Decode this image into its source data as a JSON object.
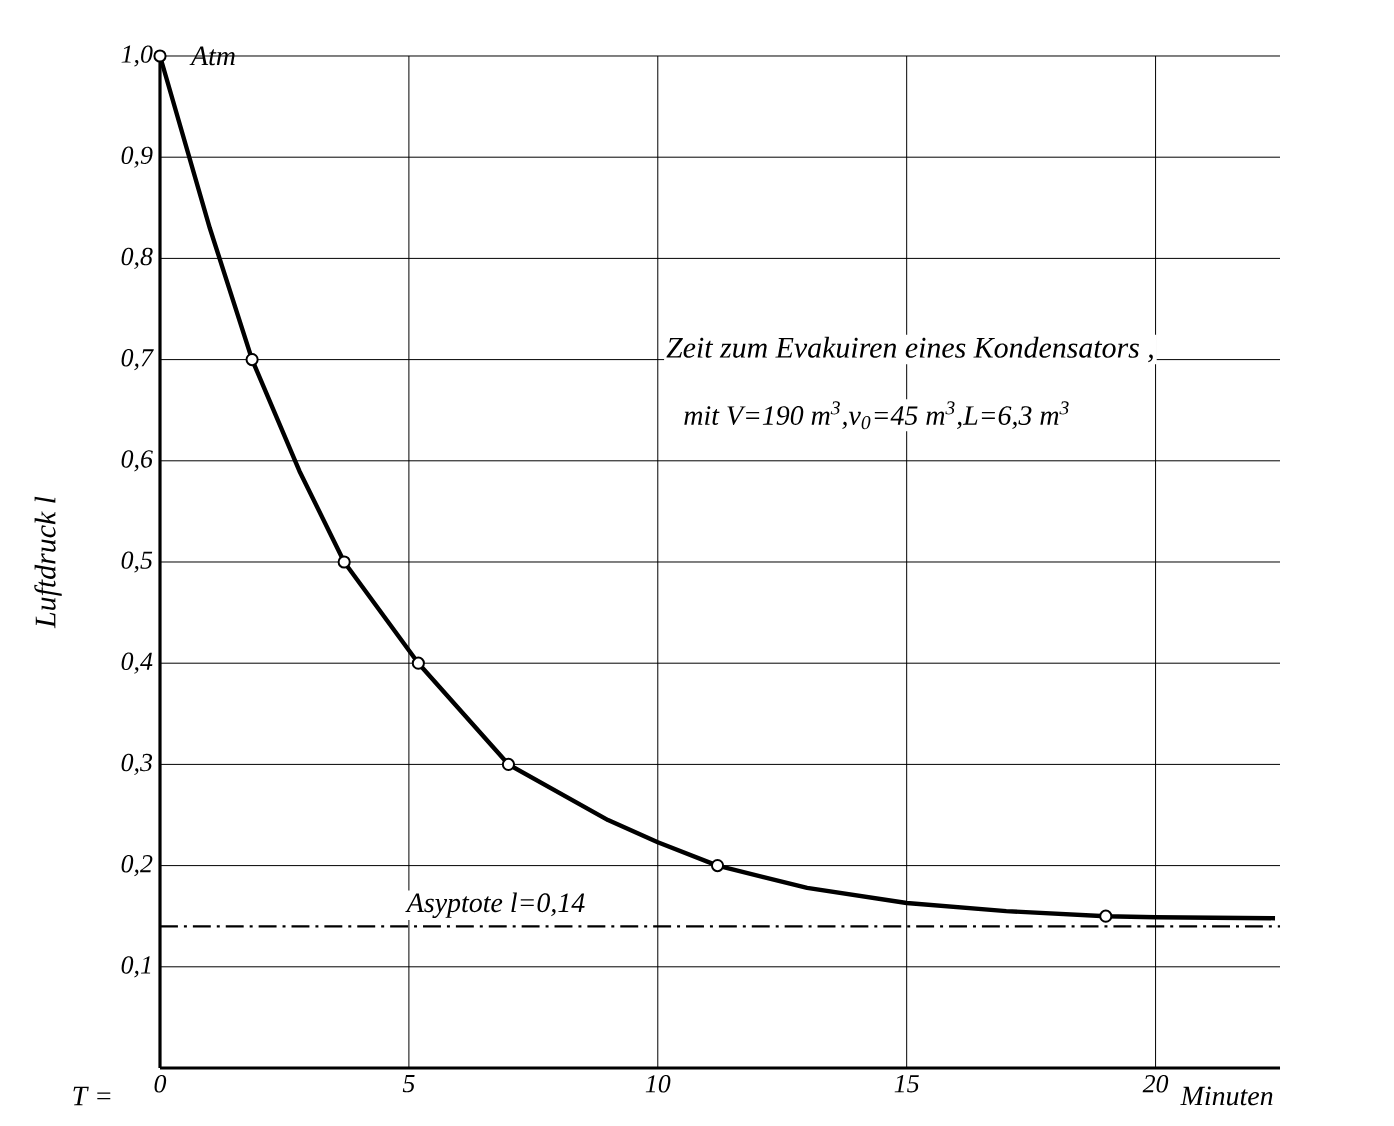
{
  "chart_data": {
    "type": "line",
    "title": "Zeit zum Evakuiren eines Kondensators ,",
    "subtitle": "mit V=190 m$^{3}$,v$_{0}$=45 m$^{3}$,L=6,3 m$^{3}$",
    "xlabel": "Minuten",
    "ylabel": "Luftdruck l",
    "series": [
      {
        "color": "#000000",
        "marker": "none",
        "x": [
          0,
          1,
          1.85,
          2.8,
          3.7,
          5.19,
          7.0,
          9,
          10,
          11.2,
          13,
          15,
          17,
          19,
          20,
          22.4
        ],
        "values": [
          1.0,
          0.83,
          0.7,
          0.59,
          0.5,
          0.4,
          0.3,
          0.245,
          0.223,
          0.2,
          0.178,
          0.163,
          0.155,
          0.15,
          0.149,
          0.148
        ]
      },
      {
        "type": "scatter",
        "color": "#000000",
        "marker": "circle",
        "x": [
          0,
          1.85,
          3.7,
          5.19,
          7.0,
          11.2,
          19.0
        ],
        "values": [
          1.0,
          0.7,
          0.5,
          0.4,
          0.3,
          0.2,
          0.15
        ]
      }
    ],
    "xlim": [
      0,
      22.5
    ],
    "ylim": [
      0,
      1.0
    ],
    "xticks": [
      0,
      5,
      10,
      15,
      20
    ],
    "yticks": [
      {
        "value": 0.1,
        "label": "0,1"
      },
      {
        "value": 0.2,
        "label": "0,2"
      },
      {
        "value": 0.3,
        "label": "0,3"
      },
      {
        "value": 0.4,
        "label": "0,4"
      },
      {
        "value": 0.5,
        "label": "0,5"
      },
      {
        "value": 0.6,
        "label": "0,6"
      },
      {
        "value": 0.7,
        "label": "0,7"
      },
      {
        "value": 0.8,
        "label": "0,8"
      },
      {
        "value": 0.9,
        "label": "0,9"
      },
      {
        "value": 1.0,
        "label": "1,0"
      }
    ],
    "grid": true,
    "ref_lines": [
      {
        "axis": "y",
        "value": 0.14,
        "label": "Asyptote l=0,14",
        "color": "#000000",
        "line_style": "dashdot"
      }
    ],
    "annotations": [
      {
        "text": "Atm",
        "x": 0,
        "y": 1.0
      },
      "T ="
    ]
  }
}
